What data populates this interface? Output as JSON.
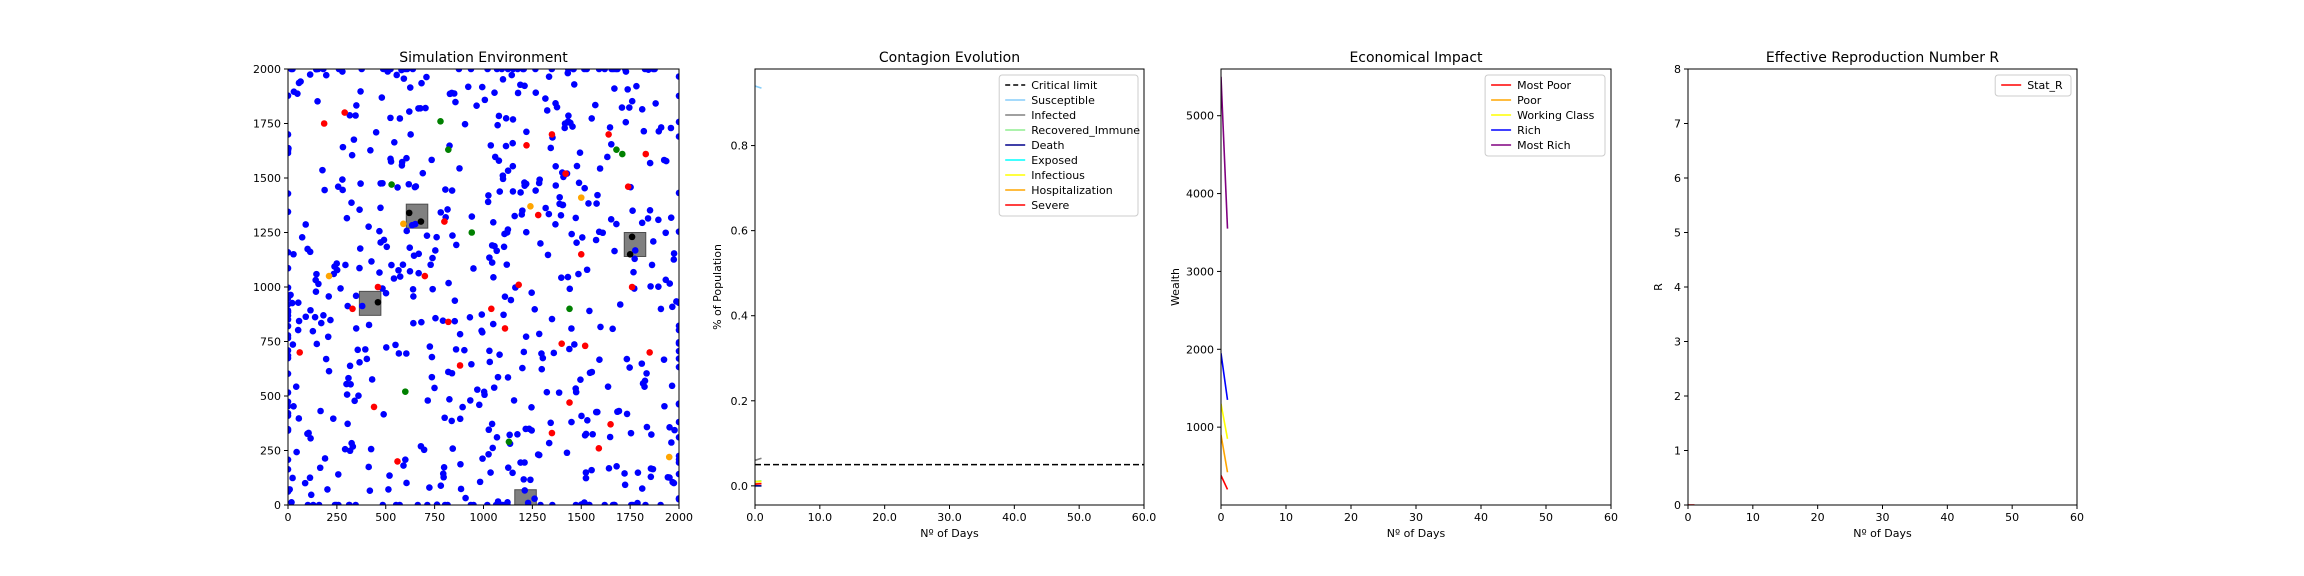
{
  "figure": {
    "background": "#ffffff"
  },
  "chart_data": [
    {
      "type": "scatter",
      "title": "Simulation Environment",
      "xlabel": "",
      "ylabel": "",
      "xlim": [
        0,
        2000
      ],
      "ylim": [
        0,
        2000
      ],
      "x_ticks": [
        0,
        250,
        500,
        750,
        1000,
        1250,
        1500,
        1750,
        2000
      ],
      "y_ticks": [
        0,
        250,
        500,
        750,
        1000,
        1250,
        1500,
        1750,
        2000
      ],
      "obstacles": [
        {
          "x": 420,
          "y": 925,
          "size": 110
        },
        {
          "x": 660,
          "y": 1325,
          "size": 110
        },
        {
          "x": 1775,
          "y": 1195,
          "size": 110
        },
        {
          "x": 1215,
          "y": 15,
          "size": 110
        }
      ],
      "series": [
        {
          "color": "#0000ff",
          "generate": {
            "count": 640,
            "seed": 7
          }
        },
        {
          "color": "#ff0000",
          "points": [
            [
              185,
              1750
            ],
            [
              60,
              700
            ],
            [
              290,
              1800
            ],
            [
              330,
              900
            ],
            [
              460,
              1000
            ],
            [
              440,
              450
            ],
            [
              560,
              200
            ],
            [
              800,
              1300
            ],
            [
              820,
              840
            ],
            [
              1040,
              900
            ],
            [
              1180,
              1010
            ],
            [
              1220,
              1650
            ],
            [
              1350,
              1700
            ],
            [
              1350,
              330
            ],
            [
              1400,
              740
            ],
            [
              1420,
              1520
            ],
            [
              1440,
              470
            ],
            [
              1500,
              1150
            ],
            [
              1520,
              730
            ],
            [
              1640,
              1700
            ],
            [
              1650,
              370
            ],
            [
              1740,
              1460
            ],
            [
              1760,
              1000
            ],
            [
              1830,
              1610
            ],
            [
              1850,
              700
            ],
            [
              1110,
              810
            ],
            [
              1280,
              1330
            ],
            [
              880,
              640
            ],
            [
              700,
              1050
            ],
            [
              1590,
              260
            ]
          ]
        },
        {
          "color": "#008000",
          "points": [
            [
              530,
              1470
            ],
            [
              820,
              1630
            ],
            [
              940,
              1250
            ],
            [
              1130,
              290
            ],
            [
              1680,
              1630
            ],
            [
              1710,
              1610
            ],
            [
              600,
              520
            ],
            [
              1440,
              900
            ],
            [
              780,
              1760
            ]
          ]
        },
        {
          "color": "#ffa500",
          "points": [
            [
              210,
              1050
            ],
            [
              1240,
              1370
            ],
            [
              1950,
              220
            ],
            [
              590,
              1290
            ],
            [
              1500,
              1410
            ]
          ]
        },
        {
          "color": "#000000",
          "points": [
            [
              460,
              930
            ],
            [
              620,
              1340
            ],
            [
              680,
              1300
            ],
            [
              1750,
              1150
            ],
            [
              1760,
              1230
            ]
          ]
        }
      ]
    },
    {
      "type": "line",
      "title": "Contagion Evolution",
      "xlabel": "Nº of Days",
      "ylabel": "% of Population",
      "xlim": [
        0,
        60
      ],
      "ylim": [
        -0.045,
        0.98
      ],
      "x_ticks": [
        0,
        10,
        20,
        30,
        40,
        50,
        60
      ],
      "y_ticks": [
        0.0,
        0.2,
        0.4,
        0.6,
        0.8
      ],
      "legend_position": "top-right",
      "hline": {
        "name": "Critical limit",
        "y": 0.05,
        "color": "#000000",
        "dashed": true
      },
      "series": [
        {
          "name": "Susceptible",
          "color": "#87cefa",
          "x": [
            0,
            1
          ],
          "values": [
            0.94,
            0.935
          ]
        },
        {
          "name": "Infected",
          "color": "#808080",
          "x": [
            0,
            1
          ],
          "values": [
            0.06,
            0.065
          ]
        },
        {
          "name": "Recovered_Immune",
          "color": "#90ee90",
          "x": [
            0,
            1
          ],
          "values": [
            0.0,
            0.0
          ]
        },
        {
          "name": "Death",
          "color": "#00008b",
          "x": [
            0,
            1
          ],
          "values": [
            0.0,
            0.0
          ]
        },
        {
          "name": "Exposed",
          "color": "#00ffff",
          "x": [
            0,
            1
          ],
          "values": [
            0.01,
            0.012
          ]
        },
        {
          "name": "Infectious",
          "color": "#ffff00",
          "x": [
            0,
            1
          ],
          "values": [
            0.01,
            0.011
          ]
        },
        {
          "name": "Hospitalization",
          "color": "#ffa500",
          "x": [
            0,
            1
          ],
          "values": [
            0.005,
            0.006
          ]
        },
        {
          "name": "Severe",
          "color": "#ff0000",
          "x": [
            0,
            1
          ],
          "values": [
            0.004,
            0.005
          ]
        }
      ]
    },
    {
      "type": "line",
      "title": "Economical Impact",
      "xlabel": "Nº of Days",
      "ylabel": "Wealth",
      "xlim": [
        0,
        60
      ],
      "ylim": [
        0,
        5600
      ],
      "x_ticks": [
        0,
        10,
        20,
        30,
        40,
        50,
        60
      ],
      "y_ticks": [
        1000,
        2000,
        3000,
        4000,
        5000
      ],
      "legend_position": "top-right",
      "series": [
        {
          "name": "Most Poor",
          "color": "#ff0000",
          "x": [
            0,
            1
          ],
          "values": [
            380,
            200
          ]
        },
        {
          "name": "Poor",
          "color": "#ffa500",
          "x": [
            0,
            1
          ],
          "values": [
            900,
            420
          ]
        },
        {
          "name": "Working Class",
          "color": "#ffff00",
          "x": [
            0,
            1
          ],
          "values": [
            1300,
            850
          ]
        },
        {
          "name": "Rich",
          "color": "#0000ff",
          "x": [
            0,
            1
          ],
          "values": [
            1950,
            1350
          ]
        },
        {
          "name": "Most Rich",
          "color": "#800080",
          "x": [
            0,
            1
          ],
          "values": [
            5500,
            3550
          ]
        }
      ]
    },
    {
      "type": "line",
      "title": "Effective Reproduction Number R",
      "xlabel": "Nº of Days",
      "ylabel": "R",
      "xlim": [
        0,
        60
      ],
      "ylim": [
        0,
        8
      ],
      "x_ticks": [
        0,
        10,
        20,
        30,
        40,
        50,
        60
      ],
      "y_ticks": [
        0,
        1,
        2,
        3,
        4,
        5,
        6,
        7,
        8
      ],
      "legend_position": "top-right",
      "series": [
        {
          "name": "Stat_R",
          "color": "#ff0000",
          "x": [
            0,
            1
          ],
          "values": [
            0.0,
            0.0
          ]
        }
      ]
    }
  ]
}
